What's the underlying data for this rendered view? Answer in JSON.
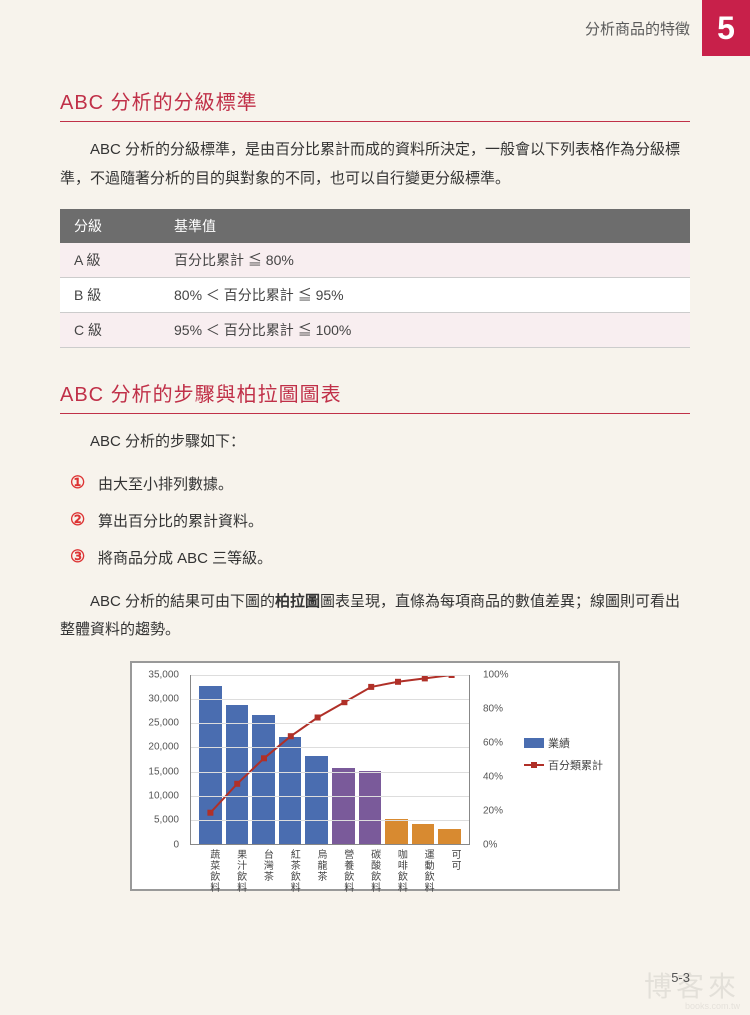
{
  "header": {
    "breadcrumb": "分析商品的特徵",
    "chapter": "5"
  },
  "section1": {
    "title": "ABC 分析的分級標準",
    "paragraph": "ABC 分析的分級標準，是由百分比累計而成的資料所決定，一般會以下列表格作為分級標準，不過隨著分析的目的與對象的不同，也可以自行變更分級標準。"
  },
  "grade_table": {
    "headers": [
      "分級",
      "基準值"
    ],
    "rows": [
      {
        "grade": "A 級",
        "criteria": "百分比累計 ≦ 80%"
      },
      {
        "grade": "B 級",
        "criteria": "80% ＜ 百分比累計 ≦ 95%"
      },
      {
        "grade": "C 級",
        "criteria": "95% ＜ 百分比累計 ≦ 100%"
      }
    ],
    "header_bg": "#6d6d6d",
    "odd_row_bg": "#f8eef0",
    "even_row_bg": "#ffffff"
  },
  "section2": {
    "title": "ABC 分析的步驟與柏拉圖圖表",
    "intro": "ABC 分析的步驟如下：",
    "steps": [
      "由大至小排列數據。",
      "算出百分比的累計資料。",
      "將商品分成 ABC 三等級。"
    ],
    "conclusion_prefix": "ABC 分析的結果可由下圖的",
    "conclusion_bold": "柏拉圖",
    "conclusion_suffix": "圖表呈現，直條為每項商品的數值差異；線圖則可看出整體資料的趨勢。"
  },
  "chart": {
    "type": "combo-bar-line",
    "categories": [
      "蔬菜飲料",
      "果汁飲料",
      "台灣茶",
      "紅茶飲料",
      "烏龍茶",
      "營養飲料",
      "碳酸飲料",
      "咖啡飲料",
      "運動飲料",
      "可可"
    ],
    "bar_values": [
      32500,
      28500,
      26500,
      22000,
      18000,
      15500,
      15000,
      5000,
      4000,
      3000
    ],
    "bar_colors": [
      "#4a6db0",
      "#4a6db0",
      "#4a6db0",
      "#4a6db0",
      "#4a6db0",
      "#7a5a9a",
      "#7a5a9a",
      "#d88a30",
      "#d88a30",
      "#d88a30"
    ],
    "line_values": [
      19,
      36,
      51,
      64,
      75,
      84,
      93,
      96,
      98,
      100
    ],
    "line_color": "#b03028",
    "y_left": {
      "min": 0,
      "max": 35000,
      "step": 5000,
      "labels": [
        "0",
        "5,000",
        "10,000",
        "15,000",
        "20,000",
        "25,000",
        "30,000",
        "35,000"
      ]
    },
    "y_right": {
      "min": 0,
      "max": 100,
      "step": 20,
      "labels": [
        "0%",
        "20%",
        "40%",
        "60%",
        "80%",
        "100%"
      ]
    },
    "legend": {
      "bar_label": "業績",
      "line_label": "百分類累計"
    },
    "background_color": "#ffffff",
    "border_color": "#999999",
    "grid_color": "#dddddd"
  },
  "page_number": "5-3",
  "watermark": {
    "main": "博客來",
    "sub": "books.com.tw"
  }
}
